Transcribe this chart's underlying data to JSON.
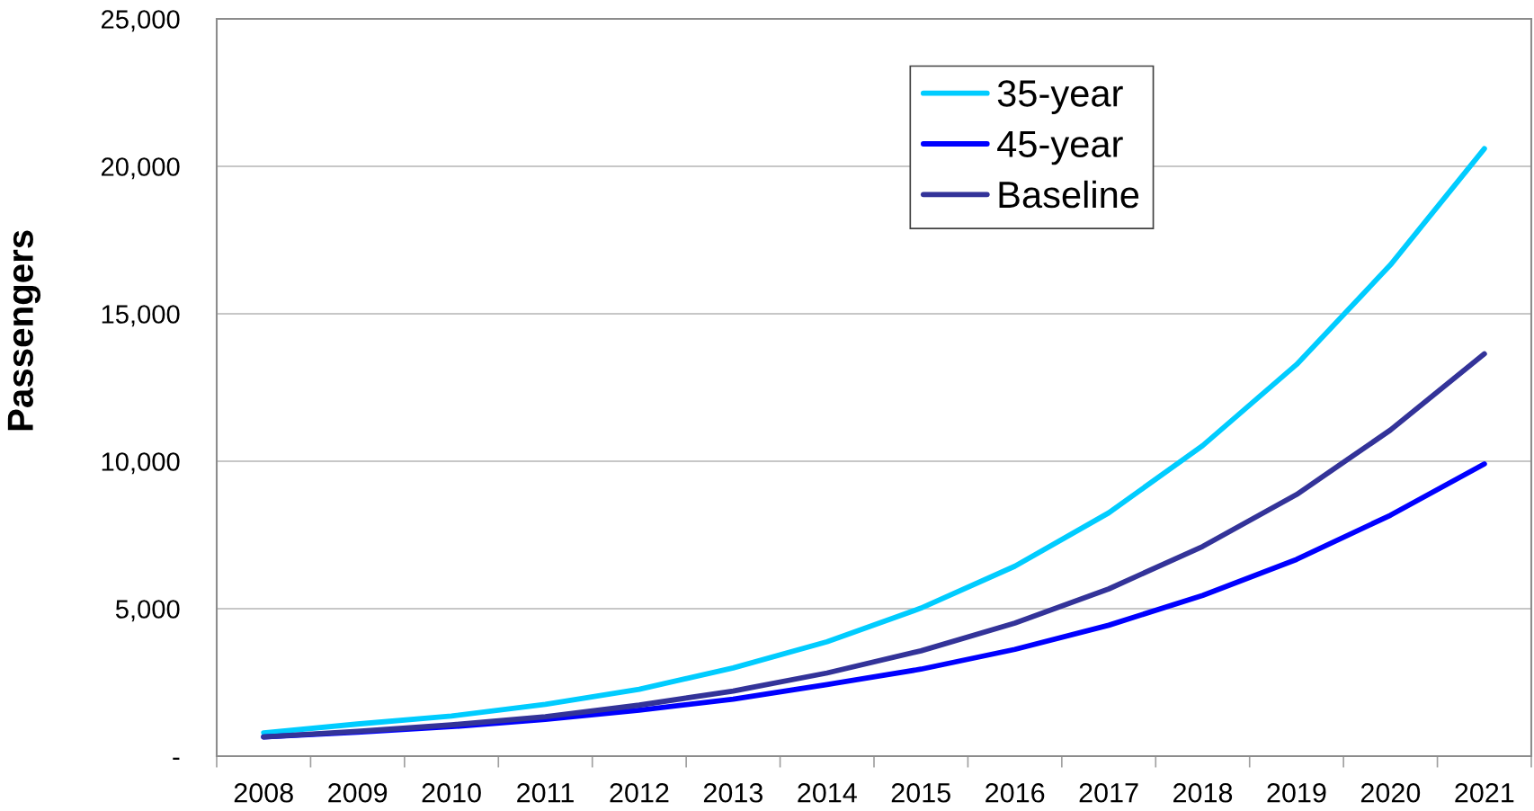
{
  "chart_data": {
    "type": "line",
    "categories": [
      "2008",
      "2009",
      "2010",
      "2011",
      "2012",
      "2013",
      "2014",
      "2015",
      "2016",
      "2017",
      "2018",
      "2019",
      "2020",
      "2021"
    ],
    "series": [
      {
        "name": "35-year",
        "color": "#00ccff",
        "values": [
          790,
          1090,
          1360,
          1760,
          2270,
          2990,
          3880,
          5020,
          6440,
          8250,
          10530,
          13280,
          16660,
          20600
        ]
      },
      {
        "name": "45-year",
        "color": "#0000ff",
        "values": [
          650,
          810,
          1000,
          1250,
          1560,
          1930,
          2430,
          2950,
          3620,
          4440,
          5450,
          6670,
          8170,
          9910
        ]
      },
      {
        "name": "Baseline",
        "color": "#333399",
        "values": [
          650,
          840,
          1060,
          1340,
          1730,
          2210,
          2820,
          3570,
          4510,
          5670,
          7110,
          8870,
          11060,
          13640
        ]
      }
    ],
    "ylabel": "Passengers",
    "ylim": [
      0,
      25000
    ],
    "yticks": [
      {
        "value": 0,
        "label": "-"
      },
      {
        "value": 5000,
        "label": "5,000"
      },
      {
        "value": 10000,
        "label": "10,000"
      },
      {
        "value": 15000,
        "label": "15,000"
      },
      {
        "value": 20000,
        "label": "20,000"
      },
      {
        "value": 25000,
        "label": "25,000"
      }
    ],
    "grid": "y",
    "legend": "top",
    "line_style": "solid",
    "marker": "none"
  }
}
